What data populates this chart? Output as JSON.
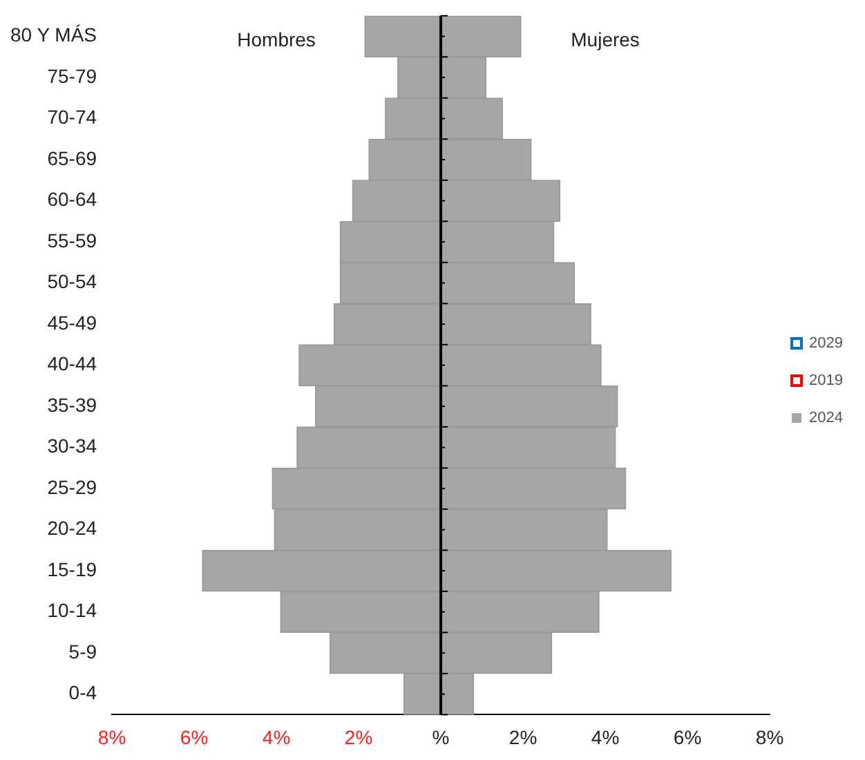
{
  "chart_data": {
    "type": "bar",
    "orientation": "horizontal",
    "stacked": true,
    "categories": [
      "80 Y MÁS",
      "75-79",
      "70-74",
      "65-69",
      "60-64",
      "55-59",
      "50-54",
      "45-49",
      "40-44",
      "35-39",
      "30-34",
      "25-29",
      "20-24",
      "15-19",
      "10-14",
      "5-9",
      "0-4"
    ],
    "series": [
      {
        "name": "2029",
        "color": "#0070c0",
        "values": [
          null,
          null,
          null,
          null,
          null,
          null,
          null,
          null,
          null,
          null,
          null,
          null,
          null,
          null,
          null,
          null,
          null
        ]
      },
      {
        "name": "2019",
        "color": "#ff0000",
        "values": [
          null,
          null,
          null,
          null,
          null,
          null,
          null,
          null,
          null,
          null,
          null,
          null,
          null,
          null,
          null,
          null,
          null
        ]
      },
      {
        "name": "2024",
        "color": "#a6a6a6",
        "values": [
          -1.85,
          -1.05,
          -1.35,
          -1.75,
          -2.15,
          -2.45,
          -2.45,
          -2.6,
          -3.45,
          -3.05,
          -3.5,
          -4.1,
          -4.05,
          -5.8,
          -3.9,
          -2.7,
          -0.9
        ]
      },
      {
        "color": "#a6a6a6",
        "values": [
          1.95,
          1.1,
          1.5,
          2.2,
          2.9,
          2.75,
          3.25,
          3.65,
          3.9,
          4.3,
          4.25,
          4.5,
          4.05,
          5.6,
          3.85,
          2.7,
          0.8
        ]
      }
    ],
    "xlim": [
      -8,
      8
    ],
    "xticks": [
      {
        "value": -8,
        "label": "8%"
      },
      {
        "value": -6,
        "label": "6%"
      },
      {
        "value": -4,
        "label": "4%"
      },
      {
        "value": -2,
        "label": "2%"
      },
      {
        "value": 0,
        "label": "%"
      },
      {
        "value": 2,
        "label": "2%"
      },
      {
        "value": 4,
        "label": "4%"
      },
      {
        "value": 6,
        "label": "6%"
      },
      {
        "value": 8,
        "label": "8%"
      }
    ],
    "annotations": [
      "Hombres",
      "Mujeres"
    ],
    "legend": "right"
  }
}
